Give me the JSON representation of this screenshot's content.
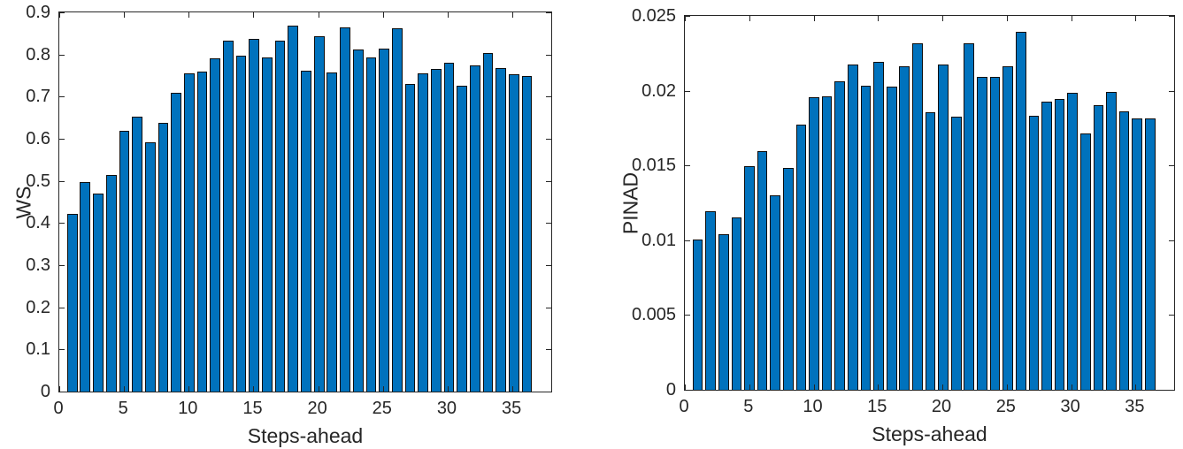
{
  "figure": {
    "background": "#ffffff",
    "text_color": "#262626",
    "bar_color": "#0072BD",
    "bar_edge_color": "#0d0d0d"
  },
  "chart_data": [
    {
      "type": "bar",
      "title": "",
      "xlabel": "Steps-ahead",
      "ylabel": "WS",
      "x": [
        1,
        2,
        3,
        4,
        5,
        6,
        7,
        8,
        9,
        10,
        11,
        12,
        13,
        14,
        15,
        16,
        17,
        18,
        19,
        20,
        21,
        22,
        23,
        24,
        25,
        26,
        27,
        28,
        29,
        30,
        31,
        32,
        33,
        34,
        35,
        36
      ],
      "values": [
        0.42,
        0.497,
        0.469,
        0.513,
        0.618,
        0.652,
        0.591,
        0.636,
        0.707,
        0.753,
        0.758,
        0.789,
        0.83,
        0.795,
        0.835,
        0.792,
        0.831,
        0.866,
        0.76,
        0.841,
        0.755,
        0.863,
        0.81,
        0.792,
        0.813,
        0.86,
        0.729,
        0.754,
        0.765,
        0.778,
        0.725,
        0.773,
        0.802,
        0.767,
        0.752,
        0.748
      ],
      "ylim": [
        0,
        0.9
      ],
      "xlim": [
        0,
        38
      ],
      "yticks": [
        0,
        0.1,
        0.2,
        0.3,
        0.4,
        0.5,
        0.6,
        0.7,
        0.8,
        0.9
      ],
      "ytick_labels": [
        "0",
        "0.1",
        "0.2",
        "0.3",
        "0.4",
        "0.5",
        "0.6",
        "0.7",
        "0.8",
        "0.9"
      ],
      "xticks": [
        0,
        5,
        10,
        15,
        20,
        25,
        30,
        35
      ],
      "xtick_labels": [
        "0",
        "5",
        "10",
        "15",
        "20",
        "25",
        "30",
        "35"
      ],
      "bar_width_fraction": 0.8,
      "grid": false,
      "legend": null
    },
    {
      "type": "bar",
      "title": "",
      "xlabel": "Steps-ahead",
      "ylabel": "PINAD",
      "x": [
        1,
        2,
        3,
        4,
        5,
        6,
        7,
        8,
        9,
        10,
        11,
        12,
        13,
        14,
        15,
        16,
        17,
        18,
        19,
        20,
        21,
        22,
        23,
        24,
        25,
        26,
        27,
        28,
        29,
        30,
        31,
        32,
        33,
        34,
        35,
        36
      ],
      "values": [
        0.01,
        0.0119,
        0.0104,
        0.0115,
        0.0149,
        0.0159,
        0.013,
        0.0148,
        0.0177,
        0.0195,
        0.0196,
        0.0206,
        0.0217,
        0.0203,
        0.0219,
        0.0202,
        0.0216,
        0.0231,
        0.0185,
        0.0217,
        0.0182,
        0.0231,
        0.0209,
        0.0209,
        0.0216,
        0.0239,
        0.0183,
        0.0192,
        0.0194,
        0.0198,
        0.0171,
        0.019,
        0.0199,
        0.0186,
        0.0181,
        0.0181
      ],
      "ylim": [
        0,
        0.025
      ],
      "xlim": [
        0,
        38
      ],
      "yticks": [
        0,
        0.005,
        0.01,
        0.015,
        0.02,
        0.025
      ],
      "ytick_labels": [
        "0",
        "0.005",
        "0.01",
        "0.015",
        "0.02",
        "0.025"
      ],
      "xticks": [
        0,
        5,
        10,
        15,
        20,
        25,
        30,
        35
      ],
      "xtick_labels": [
        "0",
        "5",
        "10",
        "15",
        "20",
        "25",
        "30",
        "35"
      ],
      "bar_width_fraction": 0.8,
      "grid": false,
      "legend": null
    }
  ]
}
